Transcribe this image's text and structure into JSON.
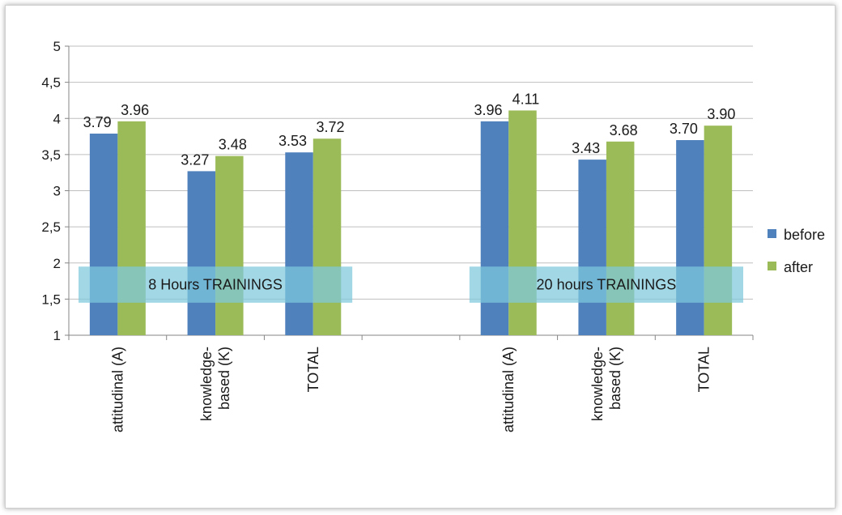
{
  "chart_data": {
    "type": "bar",
    "categories": [
      [
        "attitudinal (A)"
      ],
      [
        "knowledge-",
        "based (K)"
      ],
      [
        "TOTAL"
      ],
      [],
      [
        "attitudinal (A)"
      ],
      [
        "knowledge-",
        "based (K)"
      ],
      [
        "TOTAL"
      ]
    ],
    "series": [
      {
        "name": "before",
        "color": "#4f81bd",
        "values": [
          3.79,
          3.27,
          3.53,
          null,
          3.96,
          3.43,
          3.7
        ],
        "labels": [
          "3.79",
          "3.27",
          "3.53",
          "",
          "3.96",
          "3.43",
          "3.70"
        ]
      },
      {
        "name": "after",
        "color": "#9bbb59",
        "values": [
          3.96,
          3.48,
          3.72,
          null,
          4.11,
          3.68,
          3.9
        ],
        "labels": [
          "3.96",
          "3.48",
          "3.72",
          "",
          "4.11",
          "3.68",
          "3.90"
        ]
      }
    ],
    "ylim": [
      1,
      5
    ],
    "yticks": [
      "1",
      "1,5",
      "2",
      "2,5",
      "3",
      "3,5",
      "4",
      "4,5",
      "5"
    ],
    "grid": true,
    "legend_position": "right",
    "group_bands": [
      {
        "label": "8 Hours TRAININGS"
      },
      {
        "label": "20 hours TRAININGS"
      }
    ]
  }
}
